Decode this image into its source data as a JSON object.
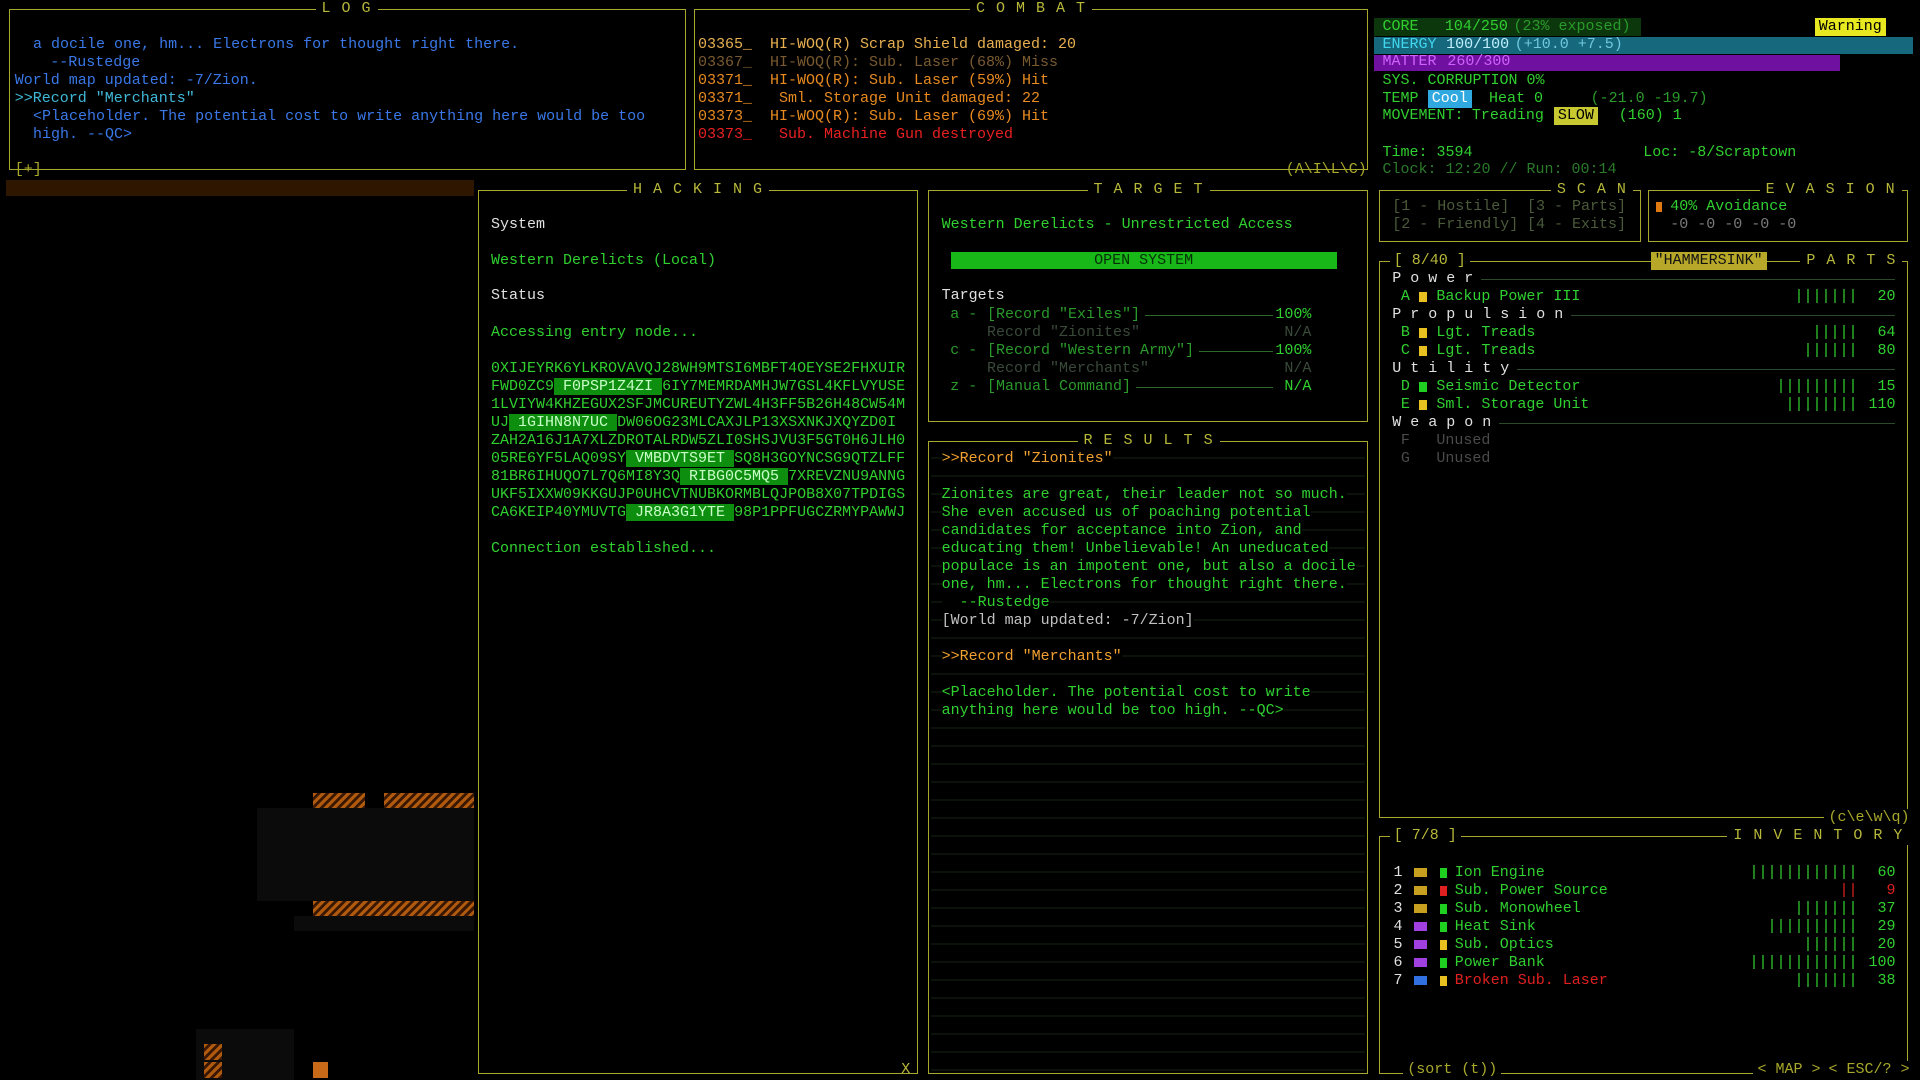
{
  "log": {
    "title": "L O G",
    "corner": "[+]",
    "lines": [
      "a docile one, hm... Electrons for thought right there.",
      "--Rustedge",
      "World map updated: -7/Zion.",
      ">>Record \"Merchants\"",
      "<Placeholder. The potential cost to write anything here would be too",
      "high. --QC>"
    ]
  },
  "combat": {
    "title": "C O M B A T",
    "corner": "(A\\I\\L\\C)",
    "lines": [
      "03365_  HI-WOQ(R) Scrap Shield damaged: 20",
      "03367_  HI-WOQ(R): Sub. Laser (68%) Miss",
      "03371_  HI-WOQ(R): Sub. Laser (59%) Hit",
      "03371_   Sml. Storage Unit damaged: 22",
      "03373_  HI-WOQ(R): Sub. Laser (69%) Hit",
      "03373_   Sub. Machine Gun destroyed"
    ]
  },
  "status": {
    "core": {
      "label": "CORE",
      "value": "104/250",
      "note": "(23% exposed)"
    },
    "warning": "Warning",
    "energy": {
      "label": "ENERGY",
      "value": "100/100",
      "note": "(+10.0 +7.5)"
    },
    "matter": {
      "label": "MATTER",
      "value": "260/300"
    },
    "corruption": "SYS. CORRUPTION 0%",
    "temp": {
      "label": "TEMP",
      "state": "Cool",
      "value": "Heat 0",
      "note": "(-21.0 -19.7)"
    },
    "movement": {
      "label": "MOVEMENT:",
      "mode": "Treading",
      "speed": "SLOW",
      "note": "(160) 1"
    },
    "time": "Time: 3594",
    "location": "Loc: -8/Scraptown",
    "clock": "Clock: 12:20 // Run: 00:14"
  },
  "hacking": {
    "title": "H A C K I N G",
    "system_label": "System",
    "system": "Western Derelicts (Local)",
    "status_label": "Status",
    "status": "Accessing entry node...",
    "code": [
      "0XIJEYRK6YLKROVAVQJ28WH9MTSI6MBFT4OEYSE2FHXUIR",
      {
        "before": "FWD0ZC9",
        "code": " F0PSP1Z4ZI ",
        "after": "6IY7MEMRDAMHJW7GSL4KFLVYUSE"
      },
      "1LVIYW4KHZEGUX2SFJMCUREUTYZWL4H3FF5B26H48CW54M",
      {
        "before": "UJ",
        "code": " 1GIHN8N7UC ",
        "after": "DW06OG23MLCAXJLP13XSXNKJXQYZD0I"
      },
      "ZAH2A16J1A7XLZDROTALRDW5ZLI0SHSJVU3F5GT0H6JLH0",
      {
        "before": "05RE6YF5LAQ09SY",
        "code": " VMBDVTS9ET ",
        "after": "SQ8H3GOYNCSG9QTZLFF"
      },
      {
        "before": "81BR6IHUQO7L7Q6MI8Y3Q",
        "code": " RIBG0C5MQ5 ",
        "after": "7XREVZNU9ANNG"
      },
      "UKF5IXXW09KKGUJP0UHCVTNUBKORMBLQJPOB8X07TPDIGS",
      {
        "before": "CA6KEIP40YMUVTG",
        "code": " JR8A3G1YTE ",
        "after": "98P1PPFUGCZRMYPAWWJ"
      }
    ],
    "result": "Connection established...",
    "close": "X"
  },
  "target": {
    "title": "T A R G E T",
    "name": "Western Derelicts - Unrestricted Access",
    "button": "OPEN SYSTEM",
    "targets_label": "Targets",
    "targets": [
      {
        "key": "a -",
        "name": "[Record \"Exiles\"]",
        "rate": "100%"
      },
      {
        "name": "Record \"Zionites\"",
        "rate": "N/A"
      },
      {
        "key": "c -",
        "name": "[Record \"Western Army\"]",
        "rate": "100%"
      },
      {
        "name": "Record \"Merchants\"",
        "rate": "N/A"
      },
      {
        "key": "z -",
        "name": "[Manual Command]",
        "rate": "N/A"
      }
    ]
  },
  "results": {
    "title": "R E S U L T S",
    "lines": [
      ">>Record \"Zionites\"",
      null,
      "Zionites are great, their leader not so much.",
      "She even accused us of poaching potential",
      "candidates for acceptance into Zion, and",
      "educating them! Unbelievable! An uneducated",
      "populace is an impotent one, but also a docile",
      "one, hm... Electrons for thought right there.",
      "  --Rustedge",
      "[World map updated: -7/Zion]",
      null,
      ">>Record \"Merchants\"",
      null,
      "<Placeholder. The potential cost to write",
      "anything here would be too high. --QC>"
    ]
  },
  "scan": {
    "title": "S C A N",
    "items": [
      "[1 - Hostile]",
      "[3 - Parts]",
      "[2 - Friendly]",
      "[4 - Exits]"
    ]
  },
  "evasion": {
    "title": "E V A S I O N",
    "avoidance": "40% Avoidance",
    "modifiers": "-0 -0 -0 -0 -0"
  },
  "parts": {
    "title": "P A R T S",
    "count": "[ 8/40 ]",
    "name": "\"HAMMERSINK\"",
    "corner": "(c\\e\\w\\q)",
    "groups": [
      {
        "name": "P o w e r",
        "items": [
          {
            "key": "A",
            "name": "Backup Power III",
            "integrity": "|||||||",
            "value": 20
          }
        ]
      },
      {
        "name": "P r o p u l s i o n",
        "items": [
          {
            "key": "B",
            "name": "Lgt. Treads",
            "integrity": "|||||",
            "value": 64
          },
          {
            "key": "C",
            "name": "Lgt. Treads",
            "integrity": "||||||",
            "value": 80
          }
        ]
      },
      {
        "name": "U t i l i t y",
        "items": [
          {
            "key": "D",
            "name": "Seismic Detector",
            "integrity": "|||||||||",
            "value": 15
          },
          {
            "key": "E",
            "name": "Sml. Storage Unit",
            "integrity": "||||||||",
            "value": 110
          }
        ]
      },
      {
        "name": "W e a p o n",
        "items": [
          {
            "key": "F",
            "name": "Unused"
          },
          {
            "key": "G",
            "name": "Unused"
          }
        ]
      }
    ]
  },
  "inventory": {
    "title": "I N V E N T O R Y",
    "count": "[ 7/8 ]",
    "sort": "(sort (t))",
    "map": "< MAP >",
    "esc": "< ESC/? >",
    "items": [
      {
        "key": "1",
        "name": "Ion Engine",
        "integrity": "||||||||||||",
        "value": 60
      },
      {
        "key": "2",
        "name": "Sub. Power Source",
        "integrity": "||",
        "value": 9
      },
      {
        "key": "3",
        "name": "Sub. Monowheel",
        "integrity": "|||||||",
        "value": 37
      },
      {
        "key": "4",
        "name": "Heat Sink",
        "integrity": "||||||||||",
        "value": 29
      },
      {
        "key": "5",
        "name": "Sub. Optics",
        "integrity": "||||||",
        "value": 20
      },
      {
        "key": "6",
        "name": "Power Bank",
        "integrity": "||||||||||||",
        "value": 100
      },
      {
        "key": "7",
        "name": "Broken Sub. Laser",
        "integrity": "|||||||",
        "value": 38
      }
    ]
  }
}
